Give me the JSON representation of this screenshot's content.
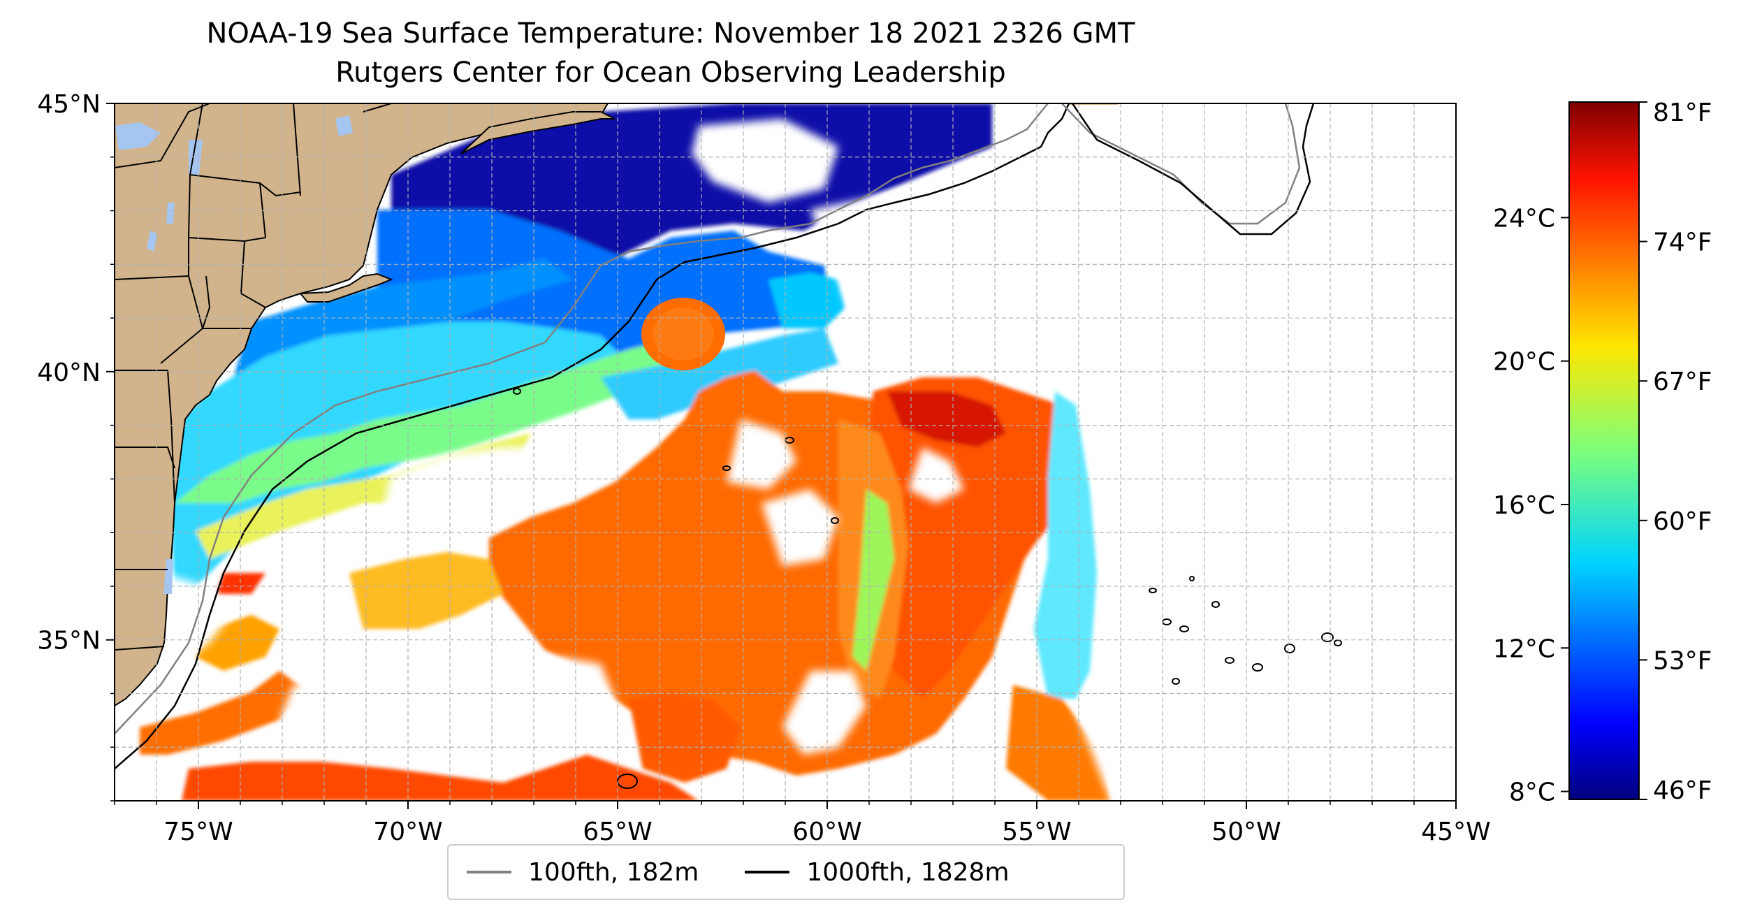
{
  "title": "NOAA-19 Sea Surface Temperature: November 18 2021 2326 GMT",
  "subtitle": "Rutgers Center for Ocean Observing Leadership",
  "map": {
    "lon_range": [
      -77,
      -45
    ],
    "lat_range": [
      32,
      45
    ],
    "x_ticks": [
      "75°W",
      "70°W",
      "65°W",
      "60°W",
      "55°W",
      "50°W",
      "45°W"
    ],
    "y_ticks": [
      "45°N",
      "40°N",
      "35°N"
    ],
    "gridlines": "dashed, 1° spacing",
    "land_color": "#d2b48c",
    "water_body_color": "#a6c6f2",
    "cloud_mask_color": "#ffffff",
    "features": [
      "coastline",
      "state-borders",
      "sst-field",
      "isobath-100fth",
      "isobath-1000fth",
      "warm-core-ring",
      "seamounts"
    ]
  },
  "colorbar": {
    "colormap": "jet",
    "celsius_ticks": [
      "24°C",
      "20°C",
      "16°C",
      "12°C",
      "8°C"
    ],
    "fahrenheit_ticks": [
      "81°F",
      "74°F",
      "67°F",
      "60°F",
      "53°F",
      "46°F"
    ],
    "range_f": [
      46,
      81
    ]
  },
  "legend": {
    "items": [
      {
        "label": "100fth, 182m",
        "color": "#808080"
      },
      {
        "label": "1000fth, 1828m",
        "color": "#000000"
      }
    ]
  }
}
